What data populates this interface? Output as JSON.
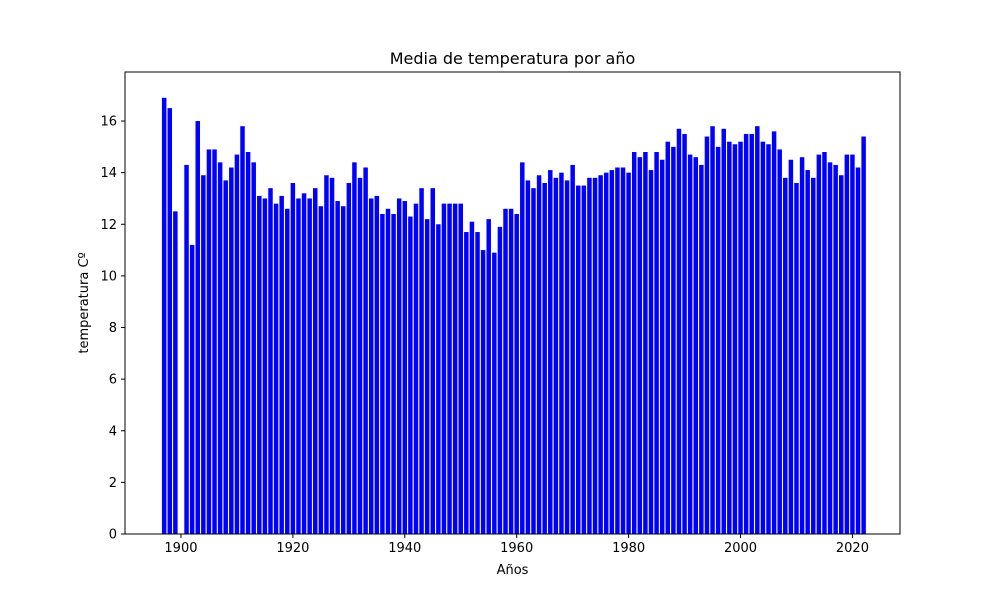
{
  "chart_data": {
    "type": "bar",
    "title": "Media de temperatura por año",
    "xlabel": "Años",
    "ylabel": "temperatura Cº",
    "xlim": [
      1890,
      2028.5
    ],
    "ylim": [
      0,
      17.9
    ],
    "xticks": [
      1900,
      1920,
      1940,
      1960,
      1980,
      2000,
      2020
    ],
    "yticks": [
      0,
      2,
      4,
      6,
      8,
      10,
      12,
      14,
      16
    ],
    "color": "#0000ff",
    "grid": false,
    "x": [
      1897,
      1898,
      1899,
      1900,
      1901,
      1902,
      1903,
      1904,
      1905,
      1906,
      1907,
      1908,
      1909,
      1910,
      1911,
      1912,
      1913,
      1914,
      1915,
      1916,
      1917,
      1918,
      1919,
      1920,
      1921,
      1922,
      1923,
      1924,
      1925,
      1926,
      1927,
      1928,
      1929,
      1930,
      1931,
      1932,
      1933,
      1934,
      1935,
      1936,
      1937,
      1938,
      1939,
      1940,
      1941,
      1942,
      1943,
      1944,
      1945,
      1946,
      1947,
      1948,
      1949,
      1950,
      1951,
      1952,
      1953,
      1954,
      1955,
      1956,
      1957,
      1958,
      1959,
      1960,
      1961,
      1962,
      1963,
      1964,
      1965,
      1966,
      1967,
      1968,
      1969,
      1970,
      1971,
      1972,
      1973,
      1974,
      1975,
      1976,
      1977,
      1978,
      1979,
      1980,
      1981,
      1982,
      1983,
      1984,
      1985,
      1986,
      1987,
      1988,
      1989,
      1990,
      1991,
      1992,
      1993,
      1994,
      1995,
      1996,
      1997,
      1998,
      1999,
      2000,
      2001,
      2002,
      2003,
      2004,
      2005,
      2006,
      2007,
      2008,
      2009,
      2010,
      2011,
      2012,
      2013,
      2014,
      2015,
      2016,
      2017,
      2018,
      2019,
      2020,
      2021,
      2022
    ],
    "values": [
      16.9,
      16.5,
      12.5,
      0,
      14.3,
      11.2,
      16.0,
      13.9,
      14.9,
      14.9,
      14.4,
      13.7,
      14.2,
      14.7,
      15.8,
      14.8,
      14.4,
      13.1,
      13.0,
      13.4,
      12.8,
      13.1,
      12.6,
      13.6,
      13.0,
      13.2,
      13.0,
      13.4,
      12.7,
      13.9,
      13.8,
      12.9,
      12.7,
      13.6,
      14.4,
      13.8,
      14.2,
      13.0,
      13.1,
      12.4,
      12.6,
      12.4,
      13.0,
      12.9,
      12.3,
      12.8,
      13.4,
      12.2,
      13.4,
      12.0,
      12.8,
      12.8,
      12.8,
      12.8,
      11.7,
      12.1,
      11.7,
      11.0,
      12.2,
      10.9,
      11.9,
      12.6,
      12.6,
      12.4,
      14.4,
      13.7,
      13.4,
      13.9,
      13.6,
      14.1,
      13.8,
      14.0,
      13.7,
      14.3,
      13.5,
      13.5,
      13.8,
      13.8,
      13.9,
      14.0,
      14.1,
      14.2,
      14.2,
      14.0,
      14.8,
      14.6,
      14.8,
      14.1,
      14.8,
      14.5,
      15.2,
      15.0,
      15.7,
      15.5,
      14.7,
      14.6,
      14.3,
      15.4,
      15.8,
      15.0,
      15.7,
      15.2,
      15.1,
      15.2,
      15.5,
      15.5,
      15.8,
      15.2,
      15.1,
      15.6,
      14.9,
      13.8,
      14.5,
      13.6,
      14.6,
      14.1,
      13.8,
      14.7,
      14.8,
      14.4,
      14.3,
      13.9,
      14.7,
      14.7,
      14.2,
      15.4
    ]
  }
}
